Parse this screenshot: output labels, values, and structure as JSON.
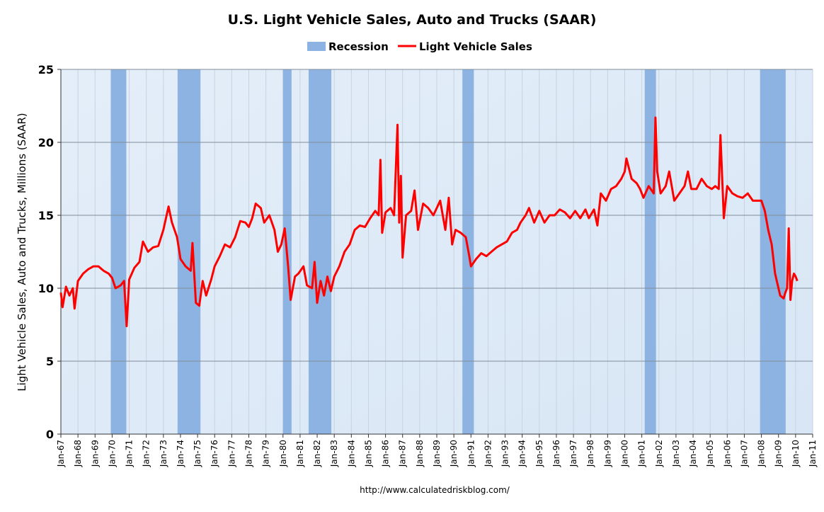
{
  "chart_data": {
    "type": "line",
    "title": "U.S. Light Vehicle Sales, Auto and Trucks (SAAR)",
    "y_label": "Light Vehicle Sales, Auto and Trucks, Millions (SAAR)",
    "source": "http://www.calculatedriskblog.com/",
    "grid": true,
    "legend": "top",
    "recessions": {
      "name": "Recession",
      "color": "#8db3e2",
      "spans": [
        [
          1969.92,
          1970.83
        ],
        [
          1973.83,
          1975.17
        ],
        [
          1980.0,
          1980.5
        ],
        [
          1981.5,
          1982.83
        ],
        [
          1990.5,
          1991.17
        ],
        [
          2001.17,
          2001.83
        ],
        [
          2007.92,
          2009.42
        ]
      ]
    },
    "x": [
      1967.0,
      1967.1,
      1967.3,
      1967.5,
      1967.7,
      1967.8,
      1968.0,
      1968.3,
      1968.6,
      1968.9,
      1969.2,
      1969.5,
      1969.8,
      1970.0,
      1970.2,
      1970.5,
      1970.7,
      1970.85,
      1971.0,
      1971.3,
      1971.6,
      1971.8,
      1972.1,
      1972.4,
      1972.7,
      1973.0,
      1973.3,
      1973.5,
      1973.8,
      1974.0,
      1974.3,
      1974.6,
      1974.7,
      1974.9,
      1975.1,
      1975.3,
      1975.5,
      1975.8,
      1976.0,
      1976.3,
      1976.6,
      1976.9,
      1977.2,
      1977.5,
      1977.8,
      1978.0,
      1978.2,
      1978.4,
      1978.7,
      1978.9,
      1979.2,
      1979.5,
      1979.7,
      1979.9,
      1980.1,
      1980.3,
      1980.45,
      1980.7,
      1980.9,
      1981.2,
      1981.4,
      1981.7,
      1981.85,
      1982.0,
      1982.2,
      1982.4,
      1982.6,
      1982.8,
      1983.0,
      1983.3,
      1983.6,
      1983.9,
      1984.2,
      1984.5,
      1984.8,
      1985.1,
      1985.4,
      1985.6,
      1985.7,
      1985.8,
      1986.0,
      1986.3,
      1986.5,
      1986.7,
      1986.8,
      1986.9,
      1987.0,
      1987.2,
      1987.5,
      1987.7,
      1987.9,
      1988.2,
      1988.5,
      1988.8,
      1989.0,
      1989.2,
      1989.5,
      1989.7,
      1989.9,
      1990.1,
      1990.4,
      1990.7,
      1990.9,
      1991.0,
      1991.3,
      1991.6,
      1991.9,
      1992.2,
      1992.5,
      1992.8,
      1993.1,
      1993.4,
      1993.7,
      1993.9,
      1994.2,
      1994.4,
      1994.7,
      1995.0,
      1995.3,
      1995.6,
      1995.9,
      1996.2,
      1996.5,
      1996.8,
      1997.1,
      1997.4,
      1997.7,
      1997.9,
      1998.2,
      1998.4,
      1998.6,
      1998.9,
      1999.2,
      1999.5,
      1999.8,
      2000.0,
      2000.1,
      2000.4,
      2000.7,
      2000.9,
      2001.1,
      2001.4,
      2001.7,
      2001.8,
      2001.9,
      2002.1,
      2002.4,
      2002.6,
      2002.9,
      2003.2,
      2003.5,
      2003.7,
      2003.9,
      2004.2,
      2004.5,
      2004.8,
      2005.1,
      2005.3,
      2005.5,
      2005.6,
      2005.8,
      2006.0,
      2006.3,
      2006.6,
      2006.9,
      2007.2,
      2007.5,
      2007.8,
      2008.0,
      2008.2,
      2008.4,
      2008.6,
      2008.8,
      2009.0,
      2009.1,
      2009.3,
      2009.4,
      2009.5,
      2009.6,
      2009.7,
      2009.8,
      2009.9,
      2010.0,
      2010.1
    ],
    "series": [
      {
        "name": "Light Vehicle Sales",
        "color": "#ff0000",
        "values": [
          9.7,
          8.7,
          10.1,
          9.5,
          10.0,
          8.6,
          10.5,
          11.0,
          11.3,
          11.5,
          11.5,
          11.2,
          11.0,
          10.7,
          10.0,
          10.2,
          10.5,
          7.4,
          10.6,
          11.4,
          11.8,
          13.2,
          12.5,
          12.8,
          12.9,
          14.0,
          15.6,
          14.5,
          13.5,
          12.0,
          11.5,
          11.2,
          13.1,
          9.0,
          8.8,
          10.5,
          9.5,
          10.6,
          11.5,
          12.2,
          13.0,
          12.8,
          13.5,
          14.6,
          14.5,
          14.2,
          14.8,
          15.8,
          15.5,
          14.5,
          15.0,
          14.0,
          12.5,
          13.0,
          14.1,
          11.5,
          9.2,
          10.8,
          11.0,
          11.5,
          10.2,
          10.0,
          11.8,
          9.0,
          10.5,
          9.5,
          10.8,
          9.8,
          10.8,
          11.5,
          12.5,
          13.0,
          14.0,
          14.3,
          14.2,
          14.8,
          15.3,
          15.0,
          18.8,
          13.8,
          15.2,
          15.5,
          15.0,
          21.2,
          14.5,
          17.7,
          12.1,
          15.0,
          15.3,
          16.7,
          14.0,
          15.8,
          15.5,
          15.0,
          15.5,
          16.0,
          14.0,
          16.2,
          13.0,
          14.0,
          13.8,
          13.5,
          12.2,
          11.5,
          12.0,
          12.4,
          12.2,
          12.5,
          12.8,
          13.0,
          13.2,
          13.8,
          14.0,
          14.5,
          15.0,
          15.5,
          14.5,
          15.3,
          14.5,
          15.0,
          15.0,
          15.4,
          15.2,
          14.8,
          15.3,
          14.8,
          15.4,
          14.8,
          15.4,
          14.3,
          16.5,
          16.0,
          16.8,
          17.0,
          17.5,
          18.0,
          18.9,
          17.5,
          17.2,
          16.8,
          16.2,
          17.0,
          16.5,
          21.7,
          18.0,
          16.5,
          17.0,
          18.0,
          16.0,
          16.5,
          17.0,
          18.0,
          16.8,
          16.8,
          17.5,
          17.0,
          16.8,
          17.0,
          16.8,
          20.5,
          14.8,
          17.0,
          16.5,
          16.3,
          16.2,
          16.5,
          16.0,
          16.0,
          16.0,
          15.3,
          14.0,
          13.0,
          11.0,
          10.0,
          9.5,
          9.3,
          9.7,
          10.0,
          14.1,
          9.2,
          10.5,
          11.0,
          10.8,
          10.5
        ]
      }
    ],
    "ylim": [
      0,
      25
    ],
    "yticks": [
      0,
      5,
      10,
      15,
      20,
      25
    ],
    "xlim": [
      1967,
      2011
    ],
    "xticks": [
      {
        "value": 1967,
        "label": "Jan-67"
      },
      {
        "value": 1968,
        "label": "Jan-68"
      },
      {
        "value": 1969,
        "label": "Jan-69"
      },
      {
        "value": 1970,
        "label": "Jan-70"
      },
      {
        "value": 1971,
        "label": "Jan-71"
      },
      {
        "value": 1972,
        "label": "Jan-72"
      },
      {
        "value": 1973,
        "label": "Jan-73"
      },
      {
        "value": 1974,
        "label": "Jan-74"
      },
      {
        "value": 1975,
        "label": "Jan-75"
      },
      {
        "value": 1976,
        "label": "Jan-76"
      },
      {
        "value": 1977,
        "label": "Jan-77"
      },
      {
        "value": 1978,
        "label": "Jan-78"
      },
      {
        "value": 1979,
        "label": "Jan-79"
      },
      {
        "value": 1980,
        "label": "Jan-80"
      },
      {
        "value": 1981,
        "label": "Jan-81"
      },
      {
        "value": 1982,
        "label": "Jan-82"
      },
      {
        "value": 1983,
        "label": "Jan-83"
      },
      {
        "value": 1984,
        "label": "Jan-84"
      },
      {
        "value": 1985,
        "label": "Jan-85"
      },
      {
        "value": 1986,
        "label": "Jan-86"
      },
      {
        "value": 1987,
        "label": "Jan-87"
      },
      {
        "value": 1988,
        "label": "Jan-88"
      },
      {
        "value": 1989,
        "label": "Jan-89"
      },
      {
        "value": 1990,
        "label": "Jan-90"
      },
      {
        "value": 1991,
        "label": "Jan-91"
      },
      {
        "value": 1992,
        "label": "Jan-92"
      },
      {
        "value": 1993,
        "label": "Jan-93"
      },
      {
        "value": 1994,
        "label": "Jan-94"
      },
      {
        "value": 1995,
        "label": "Jan-95"
      },
      {
        "value": 1996,
        "label": "Jan-96"
      },
      {
        "value": 1997,
        "label": "Jan-97"
      },
      {
        "value": 1998,
        "label": "Jan-98"
      },
      {
        "value": 1999,
        "label": "Jan-99"
      },
      {
        "value": 2000,
        "label": "Jan-00"
      },
      {
        "value": 2001,
        "label": "Jan-01"
      },
      {
        "value": 2002,
        "label": "Jan-02"
      },
      {
        "value": 2003,
        "label": "Jan-03"
      },
      {
        "value": 2004,
        "label": "Jan-04"
      },
      {
        "value": 2005,
        "label": "Jan-05"
      },
      {
        "value": 2006,
        "label": "Jan-06"
      },
      {
        "value": 2007,
        "label": "Jan-07"
      },
      {
        "value": 2008,
        "label": "Jan-08"
      },
      {
        "value": 2009,
        "label": "Jan-09"
      },
      {
        "value": 2010,
        "label": "Jan-10"
      },
      {
        "value": 2011,
        "label": "Jan-11"
      }
    ]
  }
}
